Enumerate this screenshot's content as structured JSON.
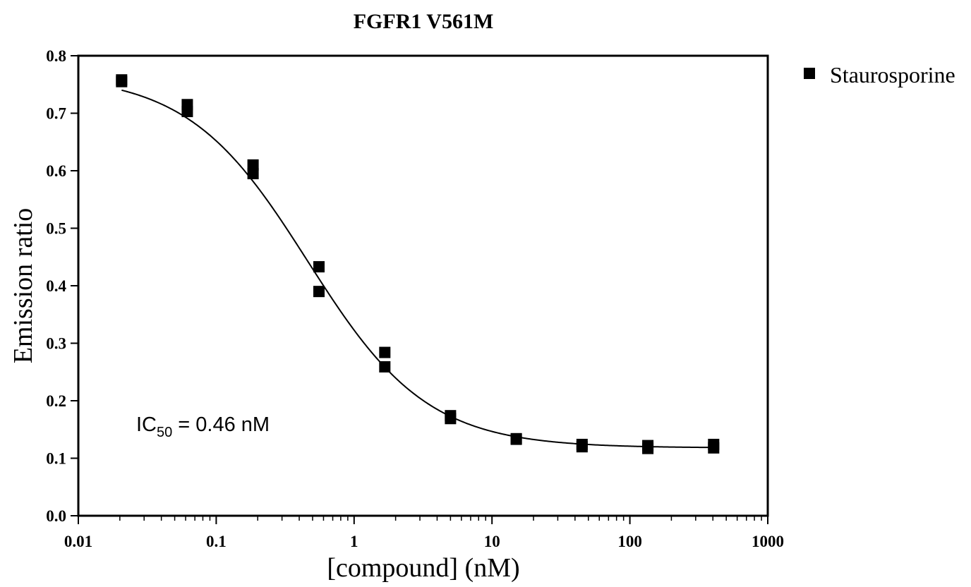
{
  "chart_data": {
    "type": "scatter",
    "title": "FGFR1 V561M",
    "xlabel": "[compound] (nM)",
    "ylabel": "Emission ratio",
    "x_scale": "log",
    "xlim": [
      0.01,
      1000
    ],
    "ylim": [
      0.0,
      0.8
    ],
    "x_ticks": [
      "0.01",
      "0.1",
      "1",
      "10",
      "100",
      "1000"
    ],
    "y_ticks": [
      "0.0",
      "0.1",
      "0.2",
      "0.3",
      "0.4",
      "0.5",
      "0.6",
      "0.7",
      "0.8"
    ],
    "grid": false,
    "legend_position": "top-right outside plot",
    "series": [
      {
        "name": "Staurosporine",
        "marker": "square",
        "color": "#000000",
        "points": [
          {
            "x": 0.0206,
            "y": 0.758
          },
          {
            "x": 0.0206,
            "y": 0.755
          },
          {
            "x": 0.0617,
            "y": 0.715
          },
          {
            "x": 0.0617,
            "y": 0.703
          },
          {
            "x": 0.185,
            "y": 0.61
          },
          {
            "x": 0.185,
            "y": 0.595
          },
          {
            "x": 0.556,
            "y": 0.433
          },
          {
            "x": 0.556,
            "y": 0.39
          },
          {
            "x": 1.67,
            "y": 0.284
          },
          {
            "x": 1.67,
            "y": 0.259
          },
          {
            "x": 5.0,
            "y": 0.174
          },
          {
            "x": 5.0,
            "y": 0.169
          },
          {
            "x": 15.0,
            "y": 0.134
          },
          {
            "x": 15.0,
            "y": 0.133
          },
          {
            "x": 45.0,
            "y": 0.124
          },
          {
            "x": 45.0,
            "y": 0.12
          },
          {
            "x": 135.0,
            "y": 0.122
          },
          {
            "x": 135.0,
            "y": 0.117
          },
          {
            "x": 405.0,
            "y": 0.124
          },
          {
            "x": 405.0,
            "y": 0.118
          }
        ],
        "fit": {
          "model": "sigmoidal dose-response",
          "top": 0.768,
          "bottom": 0.118,
          "ic50_nM": 0.46,
          "hill_slope": 1.0
        }
      }
    ],
    "annotations": {
      "ic50_prefix": "IC",
      "ic50_subscript": "50",
      "ic50_value": " = 0.46  nM"
    }
  }
}
